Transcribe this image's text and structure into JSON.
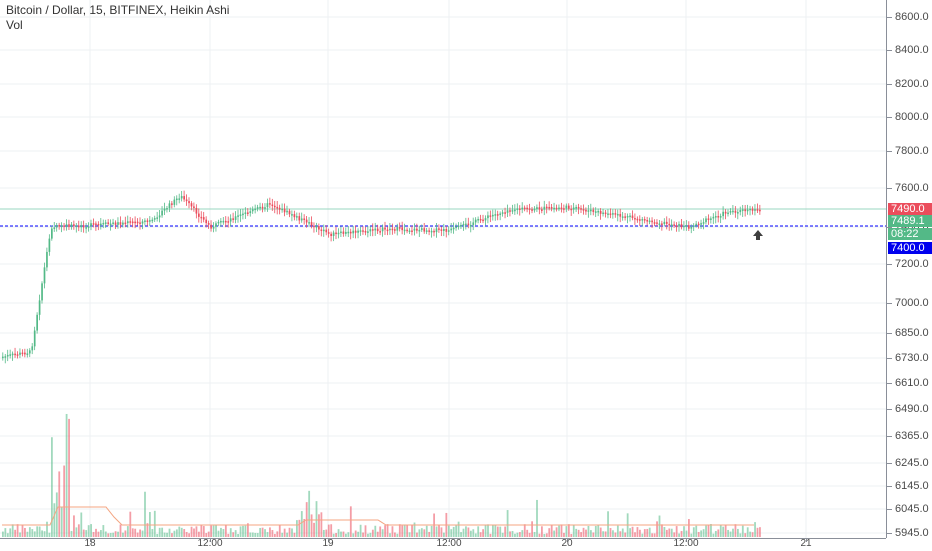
{
  "legend": {
    "title": "Bitcoin / Dollar, 15, BITFINEX, Heikin Ashi",
    "volume_label": "Vol"
  },
  "price_axis": [
    "8600.0",
    "8400.0",
    "8200.0",
    "8000.0",
    "7800.0",
    "7600.0",
    "7400.0",
    "7200.0",
    "7000.0",
    "6850.0",
    "6730.0",
    "6610.0",
    "6490.0",
    "6365.0",
    "6245.0",
    "6145.0",
    "6045.0",
    "5945.0"
  ],
  "time_axis": [
    "18",
    "12:00",
    "19",
    "12:00",
    "20",
    "12:00",
    "21"
  ],
  "badges": {
    "last_price": "7490.0",
    "current": "7489.1",
    "countdown": "08:22",
    "alert_line": "7400.0"
  },
  "colors": {
    "up": "#53b987",
    "down": "#eb4d5c",
    "alert_line": "#0000ff",
    "last_line": "#9ad7c0",
    "volume_ma": "#f4a582",
    "grid": "#eef0f3"
  },
  "chart_data": {
    "type": "candlestick",
    "symbol": "Bitcoin / Dollar",
    "interval": "15",
    "exchange": "BITFINEX",
    "style": "Heikin Ashi",
    "last_price": 7490.0,
    "alert_price": 7400.0,
    "approx_close_path": [
      {
        "t": "17 12:00",
        "price": 6710
      },
      {
        "t": "17 18:00",
        "price": 6760
      },
      {
        "t": "17 20:00",
        "price": 7400
      },
      {
        "t": "18 00:00",
        "price": 7410
      },
      {
        "t": "18 06:00",
        "price": 7430
      },
      {
        "t": "18 09:00",
        "price": 7560
      },
      {
        "t": "18 12:00",
        "price": 7400
      },
      {
        "t": "18 18:00",
        "price": 7520
      },
      {
        "t": "19 00:00",
        "price": 7360
      },
      {
        "t": "19 06:00",
        "price": 7390
      },
      {
        "t": "19 12:00",
        "price": 7380
      },
      {
        "t": "19 18:00",
        "price": 7490
      },
      {
        "t": "20 00:00",
        "price": 7500
      },
      {
        "t": "20 06:00",
        "price": 7450
      },
      {
        "t": "20 12:00",
        "price": 7400
      },
      {
        "t": "20 16:00",
        "price": 7480
      },
      {
        "t": "20 20:00",
        "price": 7490
      }
    ]
  }
}
